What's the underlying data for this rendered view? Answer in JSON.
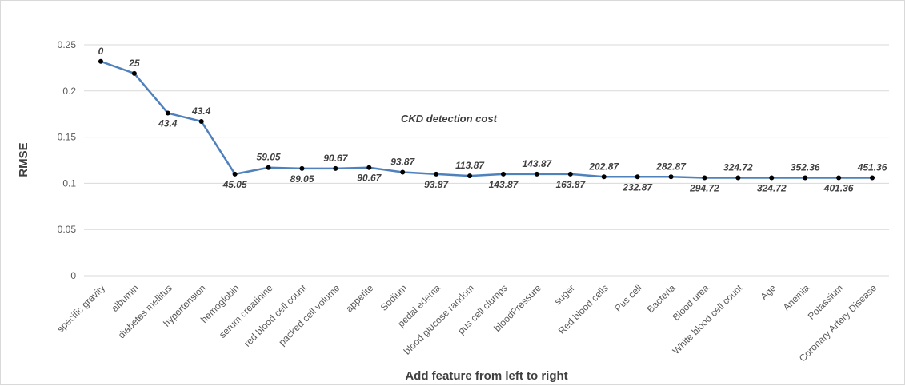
{
  "chart_data": {
    "type": "line",
    "title": "",
    "annotation": "CKD detection cost",
    "xlabel": "Add feature  from left to right",
    "ylabel": "RMSE",
    "ylim": [
      0,
      0.25
    ],
    "yticks": [
      0,
      0.05,
      0.1,
      0.15,
      0.2,
      0.25
    ],
    "ytick_labels": [
      "0",
      "0.05",
      "0.1",
      "0.15",
      "0.2",
      "0.25"
    ],
    "grid": true,
    "legend": "none",
    "line_color": "#4f81bd",
    "marker_color": "#000000",
    "categories": [
      "specific gravity",
      "albumin",
      "diabetes mellitus",
      "hypertension",
      "hemoglobin",
      "serum creatinine",
      "red blood cell count",
      "packed cell volume",
      "appetite",
      "Sodium",
      "pedal edema",
      "blood glucose random",
      "pus cell clumps",
      "bloodPressure",
      "suger",
      "Red blood cells",
      "Pus cell",
      "Bacteria",
      "Blood urea",
      "White blood cell count",
      "Age",
      "Anemia",
      "Potassium",
      "Coronary Artery Disease"
    ],
    "series": [
      {
        "values": [
          0.232,
          0.219,
          0.176,
          0.167,
          0.11,
          0.117,
          0.116,
          0.116,
          0.117,
          0.112,
          0.11,
          0.108,
          0.11,
          0.11,
          0.11,
          0.107,
          0.107,
          0.107,
          0.106,
          0.106,
          0.106,
          0.106,
          0.106,
          0.106
        ],
        "data_labels": [
          "0",
          "25",
          "43.4",
          "43.4",
          "45.05",
          "59.05",
          "89.05",
          "90.67",
          "90.67",
          "93.87",
          "93.87",
          "113.87",
          "143.87",
          "143.87",
          "163.87",
          "202.87",
          "232.87",
          "282.87",
          "294.72",
          "324.72",
          "324.72",
          "352.36",
          "401.36",
          "451.36"
        ],
        "label_positions": [
          "above",
          "above",
          "below",
          "above",
          "below",
          "above",
          "below",
          "above",
          "below",
          "above",
          "below",
          "above",
          "below",
          "above",
          "below",
          "above",
          "below",
          "above",
          "below",
          "above",
          "below",
          "above",
          "below",
          "above"
        ]
      }
    ]
  }
}
